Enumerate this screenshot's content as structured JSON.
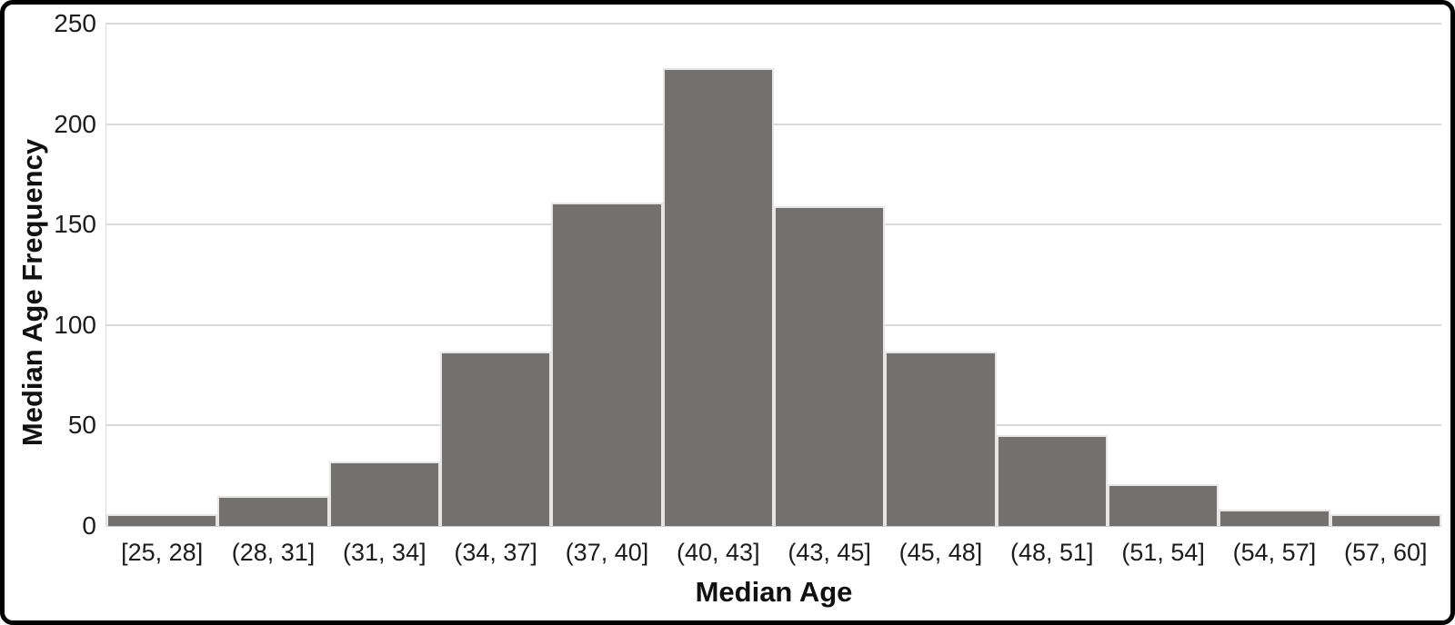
{
  "chart_data": {
    "type": "bar",
    "subtype": "histogram",
    "title": "",
    "xlabel": "Median Age",
    "ylabel": "Median Age Frequency",
    "categories": [
      "[25, 28]",
      "(28, 31]",
      "(31, 34]",
      "(34, 37]",
      "(37, 40]",
      "(40, 43]",
      "(43, 45]",
      "(45, 48]",
      "(48, 51]",
      "(51, 54]",
      "(54, 57]",
      "(57, 60]"
    ],
    "values": [
      6,
      15,
      32,
      87,
      161,
      228,
      159,
      87,
      45,
      21,
      8,
      6
    ],
    "ylim": [
      0,
      250
    ],
    "yticks": [
      0,
      50,
      100,
      150,
      200,
      250
    ],
    "grid": "horizontal",
    "legend": "none"
  },
  "colors": {
    "bar_fill": "#737070",
    "bar_border": "#e7e5e5",
    "gridline": "#d9d9d9",
    "zero_axis_line": "#cfcdcd",
    "text": "#1c1c1c",
    "frame_border": "#000000",
    "background": "#ffffff"
  }
}
